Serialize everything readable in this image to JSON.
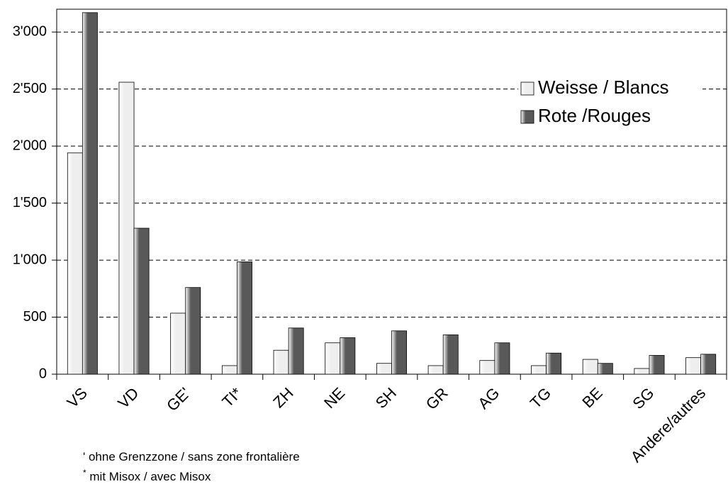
{
  "chart_data": {
    "type": "bar",
    "categories": [
      "VS",
      "VD",
      "GE'",
      "TI*",
      "ZH",
      "NE",
      "SH",
      "GR",
      "AG",
      "TG",
      "BE",
      "SG",
      "Andere/autres"
    ],
    "series": [
      {
        "name": "Weisse / Blancs",
        "color": "#eeeeee",
        "values": [
          1940,
          2560,
          535,
          75,
          210,
          275,
          95,
          75,
          120,
          75,
          130,
          50,
          145
        ]
      },
      {
        "name": "Rote /Rouges",
        "color": "#595959",
        "values": [
          3170,
          1280,
          760,
          985,
          405,
          320,
          380,
          345,
          275,
          185,
          95,
          165,
          175
        ]
      }
    ],
    "ylim": [
      0,
      3200
    ],
    "yticks": [
      0,
      500,
      {
        "value": 1000,
        "label": "1'000"
      },
      {
        "value": 1500,
        "label": "1'500"
      },
      {
        "value": 2000,
        "label": "2'000"
      },
      {
        "value": 2500,
        "label": "2'500"
      },
      {
        "value": 3000,
        "label": "3'000"
      }
    ],
    "grid": true,
    "legend": "upper right",
    "footnotes": [
      {
        "marker": "'",
        "text": " ohne Grenzzone / sans zone frontalière"
      },
      {
        "marker": "*",
        "text": " mit Misox / avec Misox"
      }
    ]
  }
}
